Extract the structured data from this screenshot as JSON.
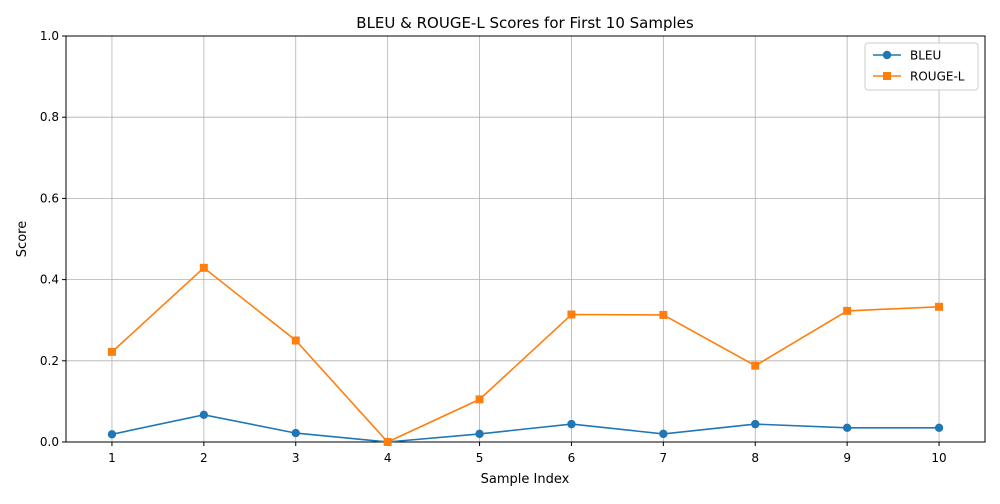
{
  "chart_data": {
    "type": "line",
    "title": "BLEU & ROUGE-L Scores for First 10 Samples",
    "xlabel": "Sample Index",
    "ylabel": "Score",
    "x": [
      1,
      2,
      3,
      4,
      5,
      6,
      7,
      8,
      9,
      10
    ],
    "xlim": [
      0.5,
      10.5
    ],
    "ylim": [
      0,
      1
    ],
    "yticks": [
      0.0,
      0.2,
      0.4,
      0.6,
      0.8,
      1.0
    ],
    "ytick_labels": [
      "0.0",
      "0.2",
      "0.4",
      "0.6",
      "0.8",
      "1.0"
    ],
    "xtick_labels": [
      "1",
      "2",
      "3",
      "4",
      "5",
      "6",
      "7",
      "8",
      "9",
      "10"
    ],
    "grid": true,
    "legend_position": "top-right",
    "series": [
      {
        "name": "BLEU",
        "color": "#1f77b4",
        "marker": "circle",
        "values": [
          0.019,
          0.067,
          0.022,
          0.0,
          0.02,
          0.044,
          0.02,
          0.044,
          0.035,
          0.035
        ]
      },
      {
        "name": "ROUGE-L",
        "color": "#ff7f0e",
        "marker": "square",
        "values": [
          0.222,
          0.429,
          0.25,
          0.0,
          0.105,
          0.314,
          0.313,
          0.188,
          0.323,
          0.333
        ]
      }
    ]
  }
}
